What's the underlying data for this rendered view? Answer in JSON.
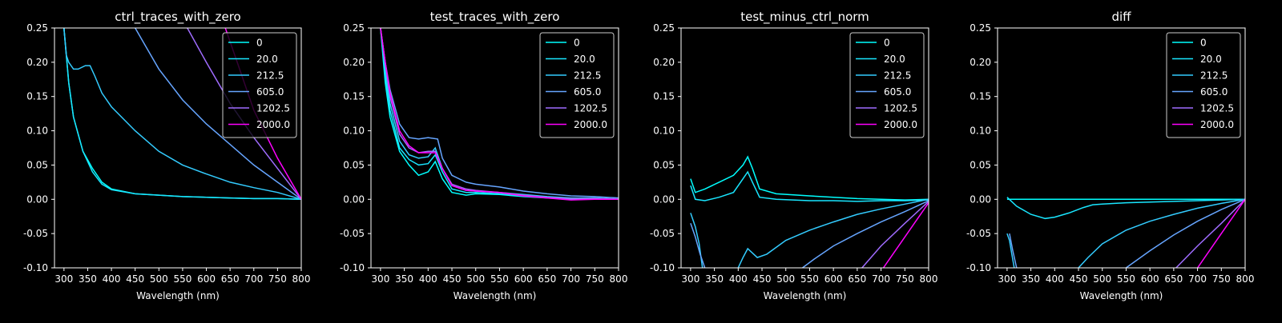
{
  "chart_data": [
    {
      "type": "line",
      "title": "ctrl_traces_with_zero",
      "xlabel": "Wavelength (nm)",
      "ylabel": "",
      "xlim": [
        280,
        800
      ],
      "ylim": [
        -0.1,
        0.25
      ],
      "xticks": [
        300,
        350,
        400,
        450,
        500,
        550,
        600,
        650,
        700,
        750,
        800
      ],
      "yticks": [
        -0.1,
        -0.05,
        0.0,
        0.05,
        0.1,
        0.15,
        0.2,
        0.25
      ],
      "grid": false,
      "legend_position": "top-right",
      "series": [
        {
          "name": "0",
          "color": "#00ffff",
          "x": [
            300,
            310,
            320,
            340,
            360,
            380,
            400,
            450,
            500,
            550,
            600,
            650,
            700,
            750,
            800
          ],
          "y": [
            0.25,
            0.17,
            0.12,
            0.07,
            0.045,
            0.025,
            0.015,
            0.008,
            0.006,
            0.004,
            0.003,
            0.002,
            0.001,
            0.001,
            0.0
          ]
        },
        {
          "name": "20.0",
          "color": "#19e6ff",
          "x": [
            300,
            310,
            320,
            340,
            360,
            380,
            400,
            450,
            500,
            550,
            600,
            650,
            700,
            750,
            800
          ],
          "y": [
            0.25,
            0.17,
            0.12,
            0.07,
            0.04,
            0.022,
            0.014,
            0.008,
            0.006,
            0.004,
            0.003,
            0.002,
            0.001,
            0.001,
            0.0
          ]
        },
        {
          "name": "212.5",
          "color": "#33ccff",
          "x": [
            300,
            305,
            310,
            320,
            330,
            345,
            355,
            365,
            380,
            400,
            450,
            500,
            550,
            600,
            650,
            700,
            750,
            800
          ],
          "y": [
            0.25,
            0.21,
            0.2,
            0.19,
            0.19,
            0.195,
            0.195,
            0.18,
            0.155,
            0.135,
            0.1,
            0.07,
            0.05,
            0.037,
            0.025,
            0.017,
            0.01,
            0.0
          ]
        },
        {
          "name": "605.0",
          "color": "#66a5ff",
          "x": [
            450,
            475,
            500,
            550,
            600,
            650,
            700,
            750,
            800
          ],
          "y": [
            0.25,
            0.22,
            0.19,
            0.145,
            0.11,
            0.08,
            0.05,
            0.025,
            0.0
          ]
        },
        {
          "name": "1202.5",
          "color": "#a06cff",
          "x": [
            560,
            600,
            650,
            700,
            750,
            800
          ],
          "y": [
            0.25,
            0.2,
            0.14,
            0.09,
            0.045,
            0.0
          ]
        },
        {
          "name": "2000.0",
          "color": "#ff00ff",
          "x": [
            640,
            660,
            700,
            750,
            800
          ],
          "y": [
            0.25,
            0.21,
            0.13,
            0.06,
            0.0
          ]
        }
      ]
    },
    {
      "type": "line",
      "title": "test_traces_with_zero",
      "xlabel": "Wavelength (nm)",
      "ylabel": "",
      "xlim": [
        280,
        800
      ],
      "ylim": [
        -0.1,
        0.25
      ],
      "xticks": [
        300,
        350,
        400,
        450,
        500,
        550,
        600,
        650,
        700,
        750,
        800
      ],
      "yticks": [
        -0.1,
        -0.05,
        0.0,
        0.05,
        0.1,
        0.15,
        0.2,
        0.25
      ],
      "grid": false,
      "legend_position": "top-right",
      "series": [
        {
          "name": "0",
          "color": "#00ffff",
          "x": [
            300,
            310,
            320,
            340,
            360,
            380,
            400,
            415,
            430,
            450,
            480,
            500,
            550,
            600,
            650,
            700,
            750,
            800
          ],
          "y": [
            0.25,
            0.17,
            0.12,
            0.07,
            0.05,
            0.035,
            0.04,
            0.055,
            0.03,
            0.01,
            0.006,
            0.008,
            0.007,
            0.004,
            0.002,
            0.0,
            0.001,
            0.0
          ]
        },
        {
          "name": "20.0",
          "color": "#19e6ff",
          "x": [
            300,
            310,
            320,
            340,
            360,
            380,
            400,
            415,
            430,
            450,
            480,
            500,
            550,
            600,
            650,
            700,
            750,
            800
          ],
          "y": [
            0.25,
            0.18,
            0.13,
            0.075,
            0.058,
            0.05,
            0.052,
            0.065,
            0.04,
            0.015,
            0.01,
            0.01,
            0.008,
            0.005,
            0.003,
            0.001,
            0.002,
            0.0
          ]
        },
        {
          "name": "212.5",
          "color": "#33ccff",
          "x": [
            300,
            310,
            320,
            340,
            360,
            380,
            400,
            415,
            430,
            450,
            480,
            500,
            550,
            600,
            650,
            700,
            750,
            800
          ],
          "y": [
            0.25,
            0.19,
            0.14,
            0.085,
            0.065,
            0.06,
            0.062,
            0.075,
            0.045,
            0.02,
            0.013,
            0.012,
            0.01,
            0.007,
            0.004,
            0.002,
            0.002,
            0.0
          ]
        },
        {
          "name": "605.0",
          "color": "#66a5ff",
          "x": [
            300,
            310,
            320,
            340,
            360,
            380,
            400,
            420,
            430,
            450,
            480,
            500,
            550,
            600,
            650,
            700,
            750,
            800
          ],
          "y": [
            0.25,
            0.2,
            0.16,
            0.11,
            0.09,
            0.088,
            0.09,
            0.088,
            0.06,
            0.035,
            0.025,
            0.022,
            0.018,
            0.012,
            0.008,
            0.005,
            0.004,
            0.002
          ]
        },
        {
          "name": "1202.5",
          "color": "#a06cff",
          "x": [
            300,
            310,
            320,
            340,
            360,
            380,
            400,
            415,
            430,
            450,
            480,
            500,
            550,
            600,
            650,
            700,
            750,
            800
          ],
          "y": [
            0.25,
            0.2,
            0.15,
            0.095,
            0.075,
            0.068,
            0.07,
            0.07,
            0.045,
            0.022,
            0.015,
            0.013,
            0.01,
            0.006,
            0.003,
            0.001,
            0.001,
            0.0
          ]
        },
        {
          "name": "2000.0",
          "color": "#ff00ff",
          "x": [
            300,
            310,
            320,
            340,
            360,
            380,
            400,
            415,
            430,
            450,
            480,
            500,
            550,
            600,
            650,
            700,
            750,
            800
          ],
          "y": [
            0.25,
            0.2,
            0.155,
            0.1,
            0.078,
            0.068,
            0.068,
            0.068,
            0.045,
            0.02,
            0.013,
            0.012,
            0.01,
            0.005,
            0.002,
            -0.001,
            0.0,
            0.0
          ]
        }
      ]
    },
    {
      "type": "line",
      "title": "test_minus_ctrl_norm",
      "xlabel": "Wavelength (nm)",
      "ylabel": "",
      "xlim": [
        280,
        800
      ],
      "ylim": [
        -0.1,
        0.25
      ],
      "xticks": [
        300,
        350,
        400,
        450,
        500,
        550,
        600,
        650,
        700,
        750,
        800
      ],
      "yticks": [
        -0.1,
        -0.05,
        0.0,
        0.05,
        0.1,
        0.15,
        0.2,
        0.25
      ],
      "grid": false,
      "legend_position": "top-right",
      "series": [
        {
          "name": "0",
          "color": "#00ffff",
          "x": [
            300,
            310,
            330,
            360,
            390,
            410,
            420,
            430,
            445,
            480,
            550,
            600,
            650,
            700,
            750,
            800
          ],
          "y": [
            0.03,
            0.01,
            0.015,
            0.025,
            0.035,
            0.05,
            0.062,
            0.045,
            0.015,
            0.008,
            0.005,
            0.003,
            0.001,
            0.0,
            -0.001,
            0.0
          ]
        },
        {
          "name": "20.0",
          "color": "#19e6ff",
          "x": [
            300,
            310,
            330,
            360,
            390,
            410,
            420,
            430,
            445,
            480,
            550,
            600,
            650,
            700,
            750,
            800
          ],
          "y": [
            0.02,
            0.0,
            -0.002,
            0.003,
            0.01,
            0.03,
            0.04,
            0.025,
            0.003,
            0.0,
            -0.002,
            -0.002,
            -0.003,
            -0.002,
            -0.002,
            -0.001
          ]
        },
        {
          "name": "212.5",
          "color": "#33ccff",
          "x": [
            400,
            410,
            420,
            440,
            460,
            500,
            550,
            600,
            650,
            700,
            750,
            800
          ],
          "y": [
            -0.1,
            -0.085,
            -0.072,
            -0.085,
            -0.08,
            -0.06,
            -0.045,
            -0.033,
            -0.022,
            -0.014,
            -0.007,
            0.0
          ]
        },
        {
          "name": "605.0",
          "color": "#66a5ff",
          "x": [
            535,
            560,
            600,
            650,
            700,
            750,
            800
          ],
          "y": [
            -0.1,
            -0.087,
            -0.068,
            -0.05,
            -0.033,
            -0.018,
            -0.002
          ]
        },
        {
          "name": "1202.5",
          "color": "#a06cff",
          "x": [
            660,
            700,
            750,
            800
          ],
          "y": [
            -0.1,
            -0.068,
            -0.035,
            -0.003
          ]
        },
        {
          "name": "2000.0",
          "color": "#ff00ff",
          "x": [
            705,
            750,
            800
          ],
          "y": [
            -0.1,
            -0.055,
            -0.005
          ]
        }
      ],
      "extra_fragments": [
        {
          "color": "#33ccff",
          "x": [
            300,
            310,
            318,
            325
          ],
          "y": [
            -0.02,
            -0.04,
            -0.065,
            -0.1
          ]
        },
        {
          "color": "#66a5ff",
          "x": [
            300,
            310,
            320,
            330
          ],
          "y": [
            -0.035,
            -0.055,
            -0.08,
            -0.1
          ]
        }
      ]
    },
    {
      "type": "line",
      "title": "diff",
      "xlabel": "Wavelength (nm)",
      "ylabel": "",
      "xlim": [
        280,
        800
      ],
      "ylim": [
        -0.1,
        0.25
      ],
      "xticks": [
        300,
        350,
        400,
        450,
        500,
        550,
        600,
        650,
        700,
        750,
        800
      ],
      "yticks": [
        -0.1,
        -0.05,
        0.0,
        0.05,
        0.1,
        0.15,
        0.2,
        0.25
      ],
      "grid": false,
      "legend_position": "top-right",
      "series": [
        {
          "name": "0",
          "color": "#00ffff",
          "x": [
            300,
            800
          ],
          "y": [
            0.0,
            0.0
          ]
        },
        {
          "name": "20.0",
          "color": "#19e6ff",
          "x": [
            300,
            320,
            350,
            380,
            400,
            430,
            460,
            480,
            500,
            550,
            600,
            650,
            700,
            750,
            800
          ],
          "y": [
            0.003,
            -0.01,
            -0.022,
            -0.028,
            -0.026,
            -0.02,
            -0.012,
            -0.008,
            -0.007,
            -0.005,
            -0.004,
            -0.003,
            -0.002,
            -0.001,
            0.0
          ]
        },
        {
          "name": "212.5",
          "color": "#33ccff",
          "x": [
            450,
            470,
            500,
            550,
            600,
            650,
            700,
            750,
            800
          ],
          "y": [
            -0.1,
            -0.085,
            -0.065,
            -0.045,
            -0.032,
            -0.022,
            -0.013,
            -0.006,
            0.0
          ]
        },
        {
          "name": "605.0",
          "color": "#66a5ff",
          "x": [
            550,
            600,
            650,
            700,
            750,
            800
          ],
          "y": [
            -0.1,
            -0.075,
            -0.052,
            -0.032,
            -0.015,
            0.0
          ]
        },
        {
          "name": "1202.5",
          "color": "#a06cff",
          "x": [
            655,
            700,
            750,
            800
          ],
          "y": [
            -0.1,
            -0.068,
            -0.035,
            0.0
          ]
        },
        {
          "name": "2000.0",
          "color": "#ff00ff",
          "x": [
            700,
            750,
            800
          ],
          "y": [
            -0.1,
            -0.05,
            0.0
          ]
        }
      ],
      "extra_fragments": [
        {
          "color": "#33ccff",
          "x": [
            300,
            305,
            310,
            315
          ],
          "y": [
            -0.05,
            -0.06,
            -0.08,
            -0.1
          ]
        },
        {
          "color": "#66a5ff",
          "x": [
            305,
            312,
            320
          ],
          "y": [
            -0.05,
            -0.075,
            -0.1
          ]
        }
      ]
    }
  ]
}
